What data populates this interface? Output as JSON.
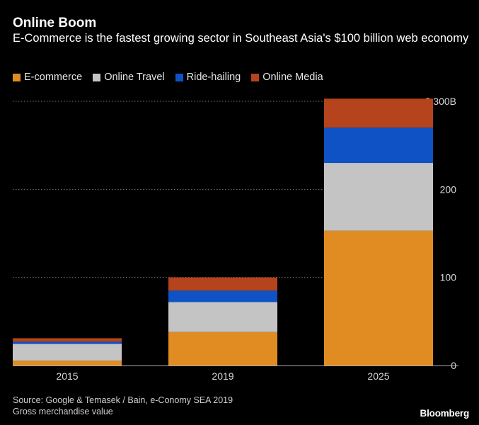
{
  "title": "Online Boom",
  "subtitle": "E-Commerce is the fastest growing sector in Southeast Asia's $100 billion web economy",
  "legend": [
    {
      "label": "E-commerce",
      "color": "#e08c22"
    },
    {
      "label": "Online Travel",
      "color": "#c4c4c4"
    },
    {
      "label": "Ride-hailing",
      "color": "#0f52c6"
    },
    {
      "label": "Online Media",
      "color": "#b5431c"
    }
  ],
  "source": "Source: Google & Temasek / Bain, e-Conomy SEA 2019",
  "note": "Gross merchandise value",
  "brand": "Bloomberg",
  "chart_data": {
    "type": "bar",
    "stacked": true,
    "categories": [
      "2015",
      "2019",
      "2025"
    ],
    "series": [
      {
        "name": "E-commerce",
        "color": "#e08c22",
        "values": [
          5.5,
          38,
          153
        ]
      },
      {
        "name": "Online Travel",
        "color": "#c4c4c4",
        "values": [
          19,
          34,
          77
        ]
      },
      {
        "name": "Ride-hailing",
        "color": "#0f52c6",
        "values": [
          2.5,
          13,
          40
        ]
      },
      {
        "name": "Online Media",
        "color": "#b5431c",
        "values": [
          4,
          15,
          33
        ]
      }
    ],
    "ylim": [
      0,
      300
    ],
    "yticks": [
      0,
      100,
      200,
      300
    ],
    "ytick_labels": [
      "0",
      "100",
      "200",
      "$ 300B"
    ],
    "grid": true,
    "legend_position": "top-left"
  }
}
